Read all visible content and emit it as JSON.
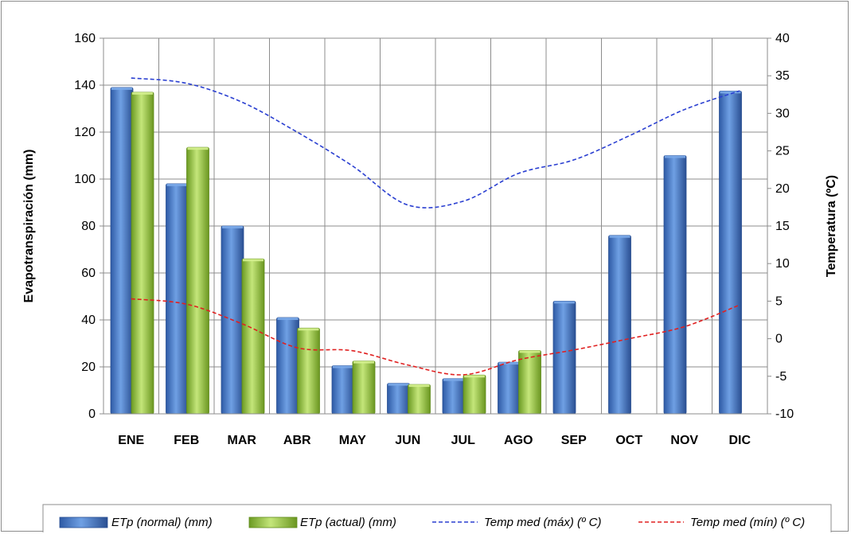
{
  "chart_data": {
    "type": "bar",
    "categories": [
      "ENE",
      "FEB",
      "MAR",
      "ABR",
      "MAY",
      "JUN",
      "JUL",
      "AGO",
      "SEP",
      "OCT",
      "NOV",
      "DIC"
    ],
    "ylabel": "Evapotranspiración  (mm)",
    "y2label": "Temperatura (ºC)",
    "ylim": [
      0,
      160
    ],
    "y2lim": [
      -10,
      40
    ],
    "yticks": [
      0,
      20,
      40,
      60,
      80,
      100,
      120,
      140,
      160
    ],
    "y2ticks": [
      -10,
      -5,
      0,
      5,
      10,
      15,
      20,
      25,
      30,
      35,
      40
    ],
    "grid": true,
    "legend_position": "bottom",
    "series": [
      {
        "name": "ETp (normal) (mm)",
        "type": "bar",
        "axis": "left",
        "color": "#4a7fcb",
        "values": [
          139,
          98,
          80,
          41,
          20.5,
          13,
          15,
          22,
          48,
          76,
          110,
          137.5
        ]
      },
      {
        "name": "ETp (actual) (mm)",
        "type": "bar",
        "axis": "left",
        "color": "#9dc947",
        "values": [
          137,
          113.5,
          66,
          36.5,
          22.5,
          12.5,
          16.5,
          27,
          null,
          null,
          null,
          null
        ]
      },
      {
        "name": "Temp med (máx) (º C)",
        "type": "line",
        "axis": "right",
        "style": "dashed",
        "color": "#2a3fd1",
        "values": [
          34.7,
          34,
          31.5,
          27.5,
          23,
          17.8,
          18.3,
          22,
          23.8,
          27,
          30.5,
          33
        ]
      },
      {
        "name": "Temp med (mín) (º C)",
        "type": "line",
        "axis": "right",
        "style": "dashed",
        "color": "#e02020",
        "values": [
          5.3,
          4.6,
          2,
          -1.2,
          -1.6,
          -3.5,
          -4.8,
          -2.8,
          -1.5,
          0,
          1.6,
          4.5
        ]
      }
    ]
  }
}
